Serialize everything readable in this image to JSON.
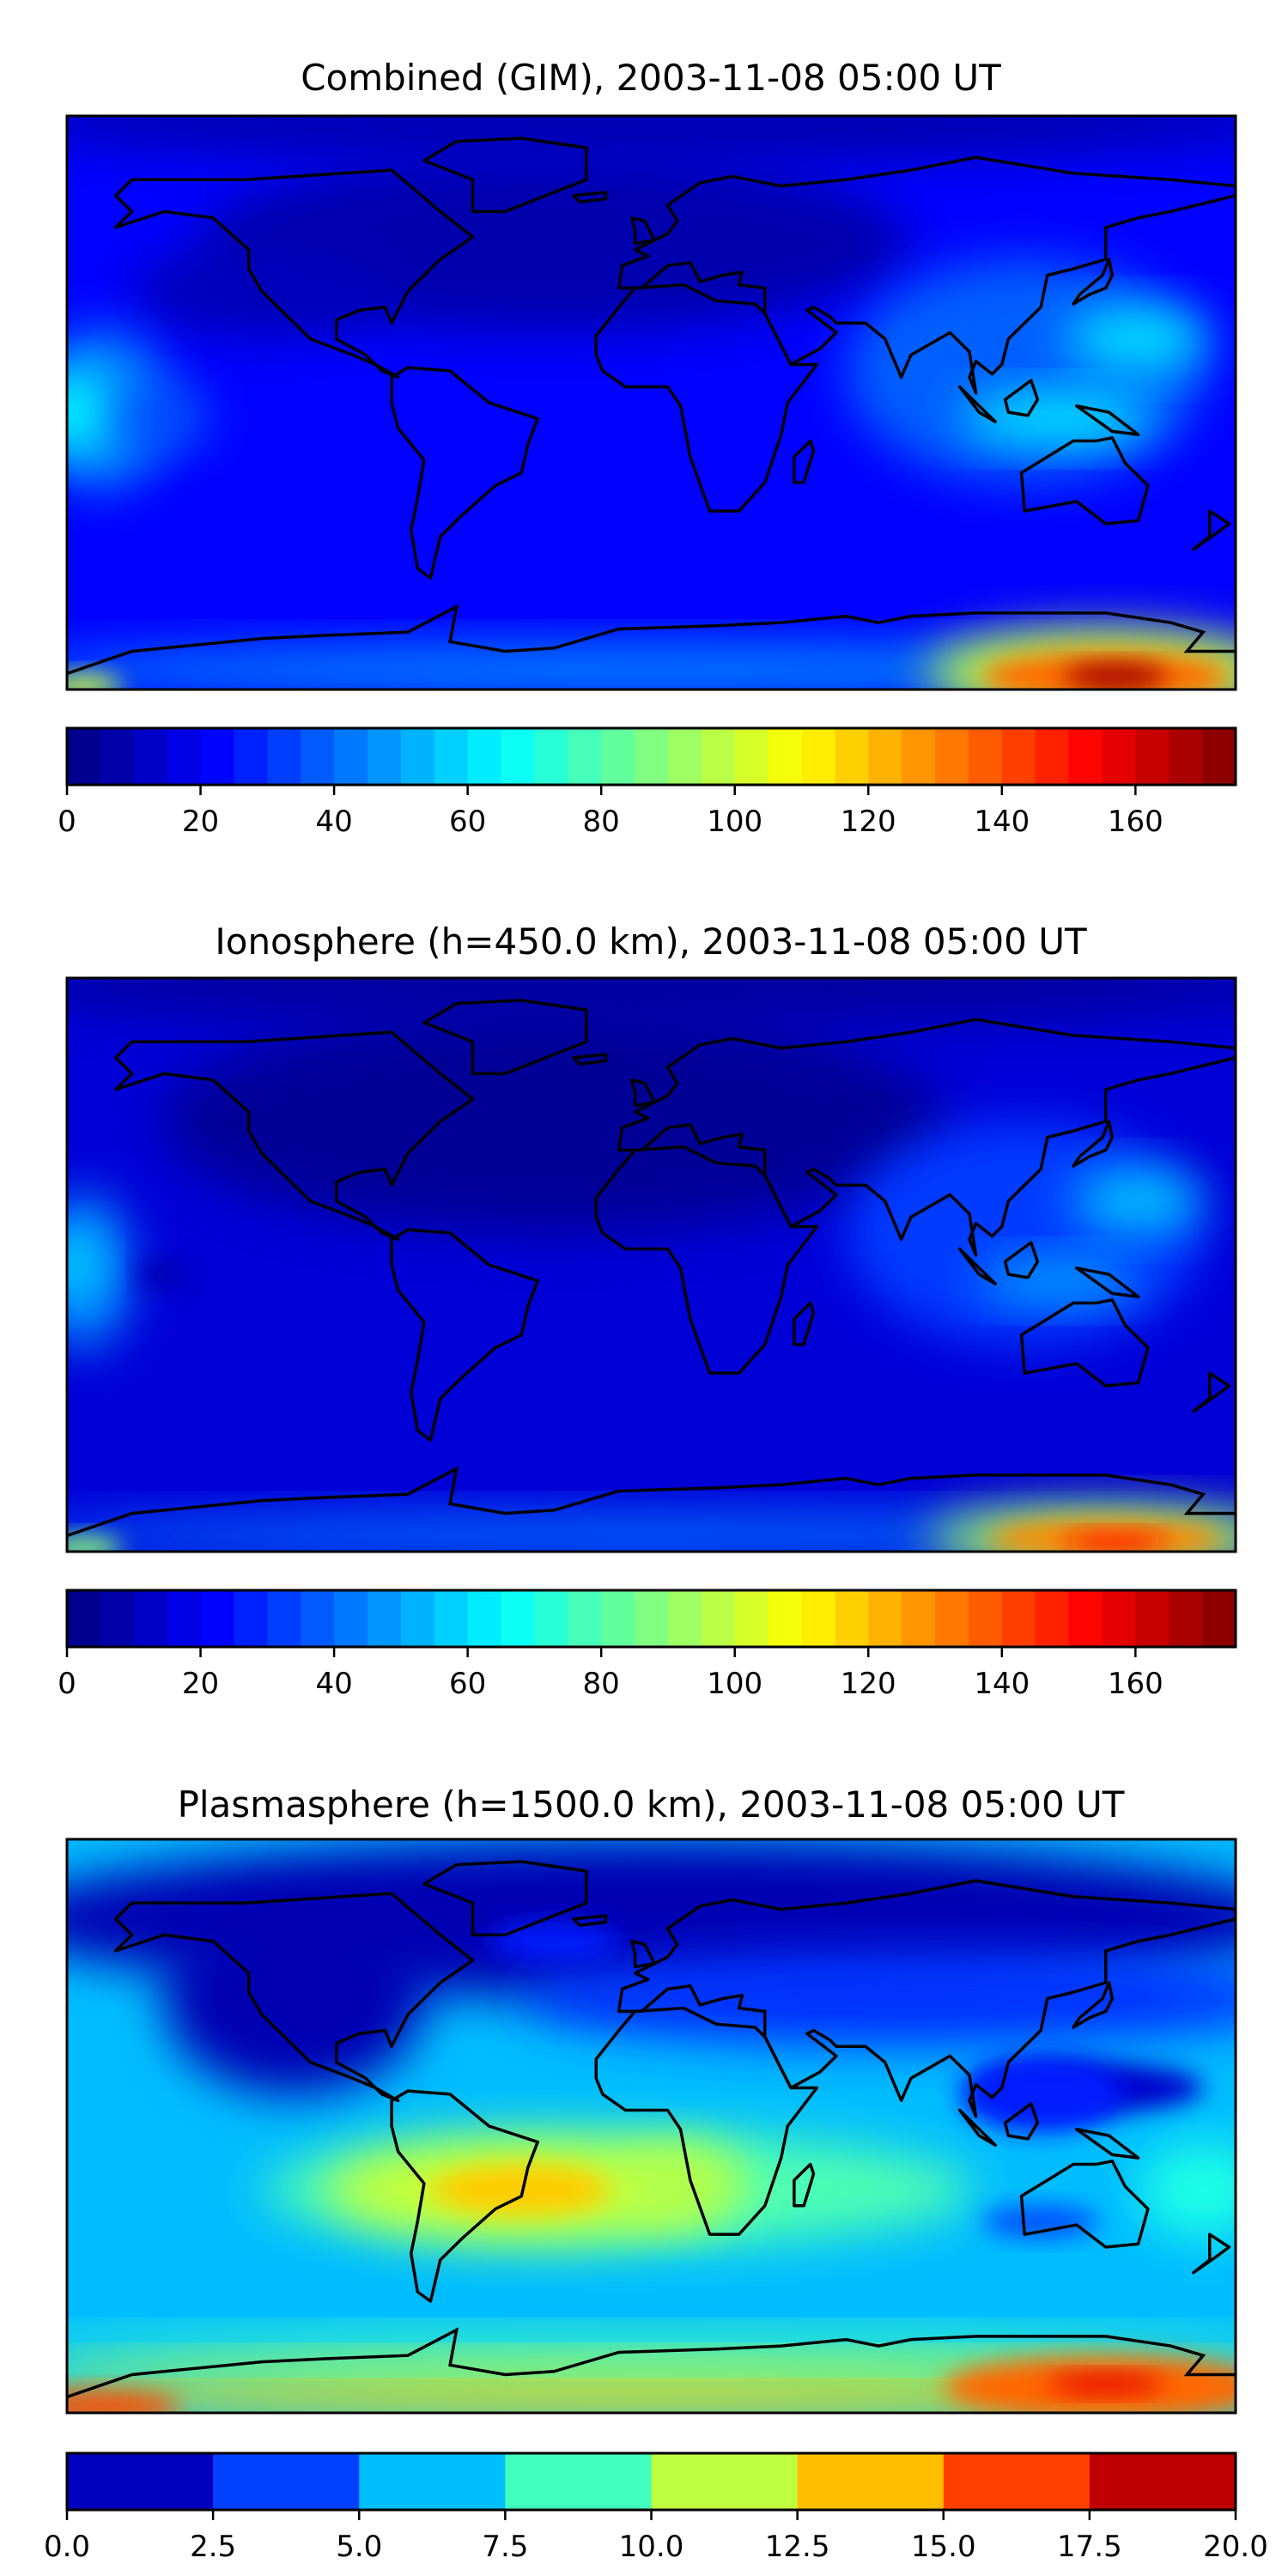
{
  "chart_data": [
    {
      "type": "heatmap",
      "subtype": "filled-contour-map",
      "title": "Combined (GIM), 2003-11-08 05:00 UT",
      "projection": "equirectangular",
      "lon_range": [
        -180,
        180
      ],
      "lat_range": [
        -90,
        90
      ],
      "colormap": "jet",
      "colorbar": {
        "min": 0,
        "max": 175,
        "step": 5,
        "ticks": [
          "0",
          "20",
          "40",
          "60",
          "80",
          "100",
          "120",
          "140",
          "160"
        ],
        "orientation": "horizontal",
        "placement": "bottom"
      },
      "features": [
        {
          "desc": "maximum",
          "lon": 140,
          "lat": -85,
          "value": 170
        },
        {
          "desc": "local high",
          "lon": 150,
          "lat": 20,
          "value": 65
        },
        {
          "desc": "local high",
          "lon": 125,
          "lat": -5,
          "value": 65
        },
        {
          "desc": "local high",
          "lon": -178,
          "lat": -3,
          "value": 70
        },
        {
          "desc": "minimum",
          "lon": -30,
          "lat": 45,
          "value": 5
        }
      ]
    },
    {
      "type": "heatmap",
      "subtype": "filled-contour-map",
      "title": "Ionosphere  (h=450.0 km), 2003-11-08 05:00 UT",
      "projection": "equirectangular",
      "lon_range": [
        -180,
        180
      ],
      "lat_range": [
        -90,
        90
      ],
      "colormap": "jet",
      "colorbar": {
        "min": 0,
        "max": 175,
        "step": 5,
        "ticks": [
          "0",
          "20",
          "40",
          "60",
          "80",
          "100",
          "120",
          "140",
          "160"
        ],
        "orientation": "horizontal",
        "placement": "bottom"
      },
      "features": [
        {
          "desc": "maximum",
          "lon": 140,
          "lat": -85,
          "value": 150
        },
        {
          "desc": "local high",
          "lon": 150,
          "lat": 20,
          "value": 60
        },
        {
          "desc": "local high",
          "lon": 125,
          "lat": -5,
          "value": 55
        },
        {
          "desc": "local high",
          "lon": -178,
          "lat": -3,
          "value": 60
        },
        {
          "desc": "minimum",
          "lon": -30,
          "lat": 40,
          "value": 3
        }
      ]
    },
    {
      "type": "heatmap",
      "subtype": "filled-contour-map",
      "title": "Plasmasphere (h=1500.0 km), 2003-11-08 05:00 UT",
      "projection": "equirectangular",
      "lon_range": [
        -180,
        180
      ],
      "lat_range": [
        -90,
        90
      ],
      "colormap": "jet",
      "colorbar": {
        "min": 0,
        "max": 20,
        "step": 2.5,
        "ticks": [
          "0.0",
          "2.5",
          "5.0",
          "7.5",
          "10.0",
          "12.5",
          "15.0",
          "17.5",
          "20.0"
        ],
        "orientation": "horizontal",
        "placement": "bottom"
      },
      "features": [
        {
          "desc": "maximum",
          "lon": 140,
          "lat": -80,
          "value": 18
        },
        {
          "desc": "local high",
          "lon": -40,
          "lat": -20,
          "value": 13.5
        },
        {
          "desc": "minimum",
          "lon": -100,
          "lat": 45,
          "value": 1
        },
        {
          "desc": "minimum",
          "lon": 130,
          "lat": 10,
          "value": 1.5
        }
      ]
    }
  ]
}
